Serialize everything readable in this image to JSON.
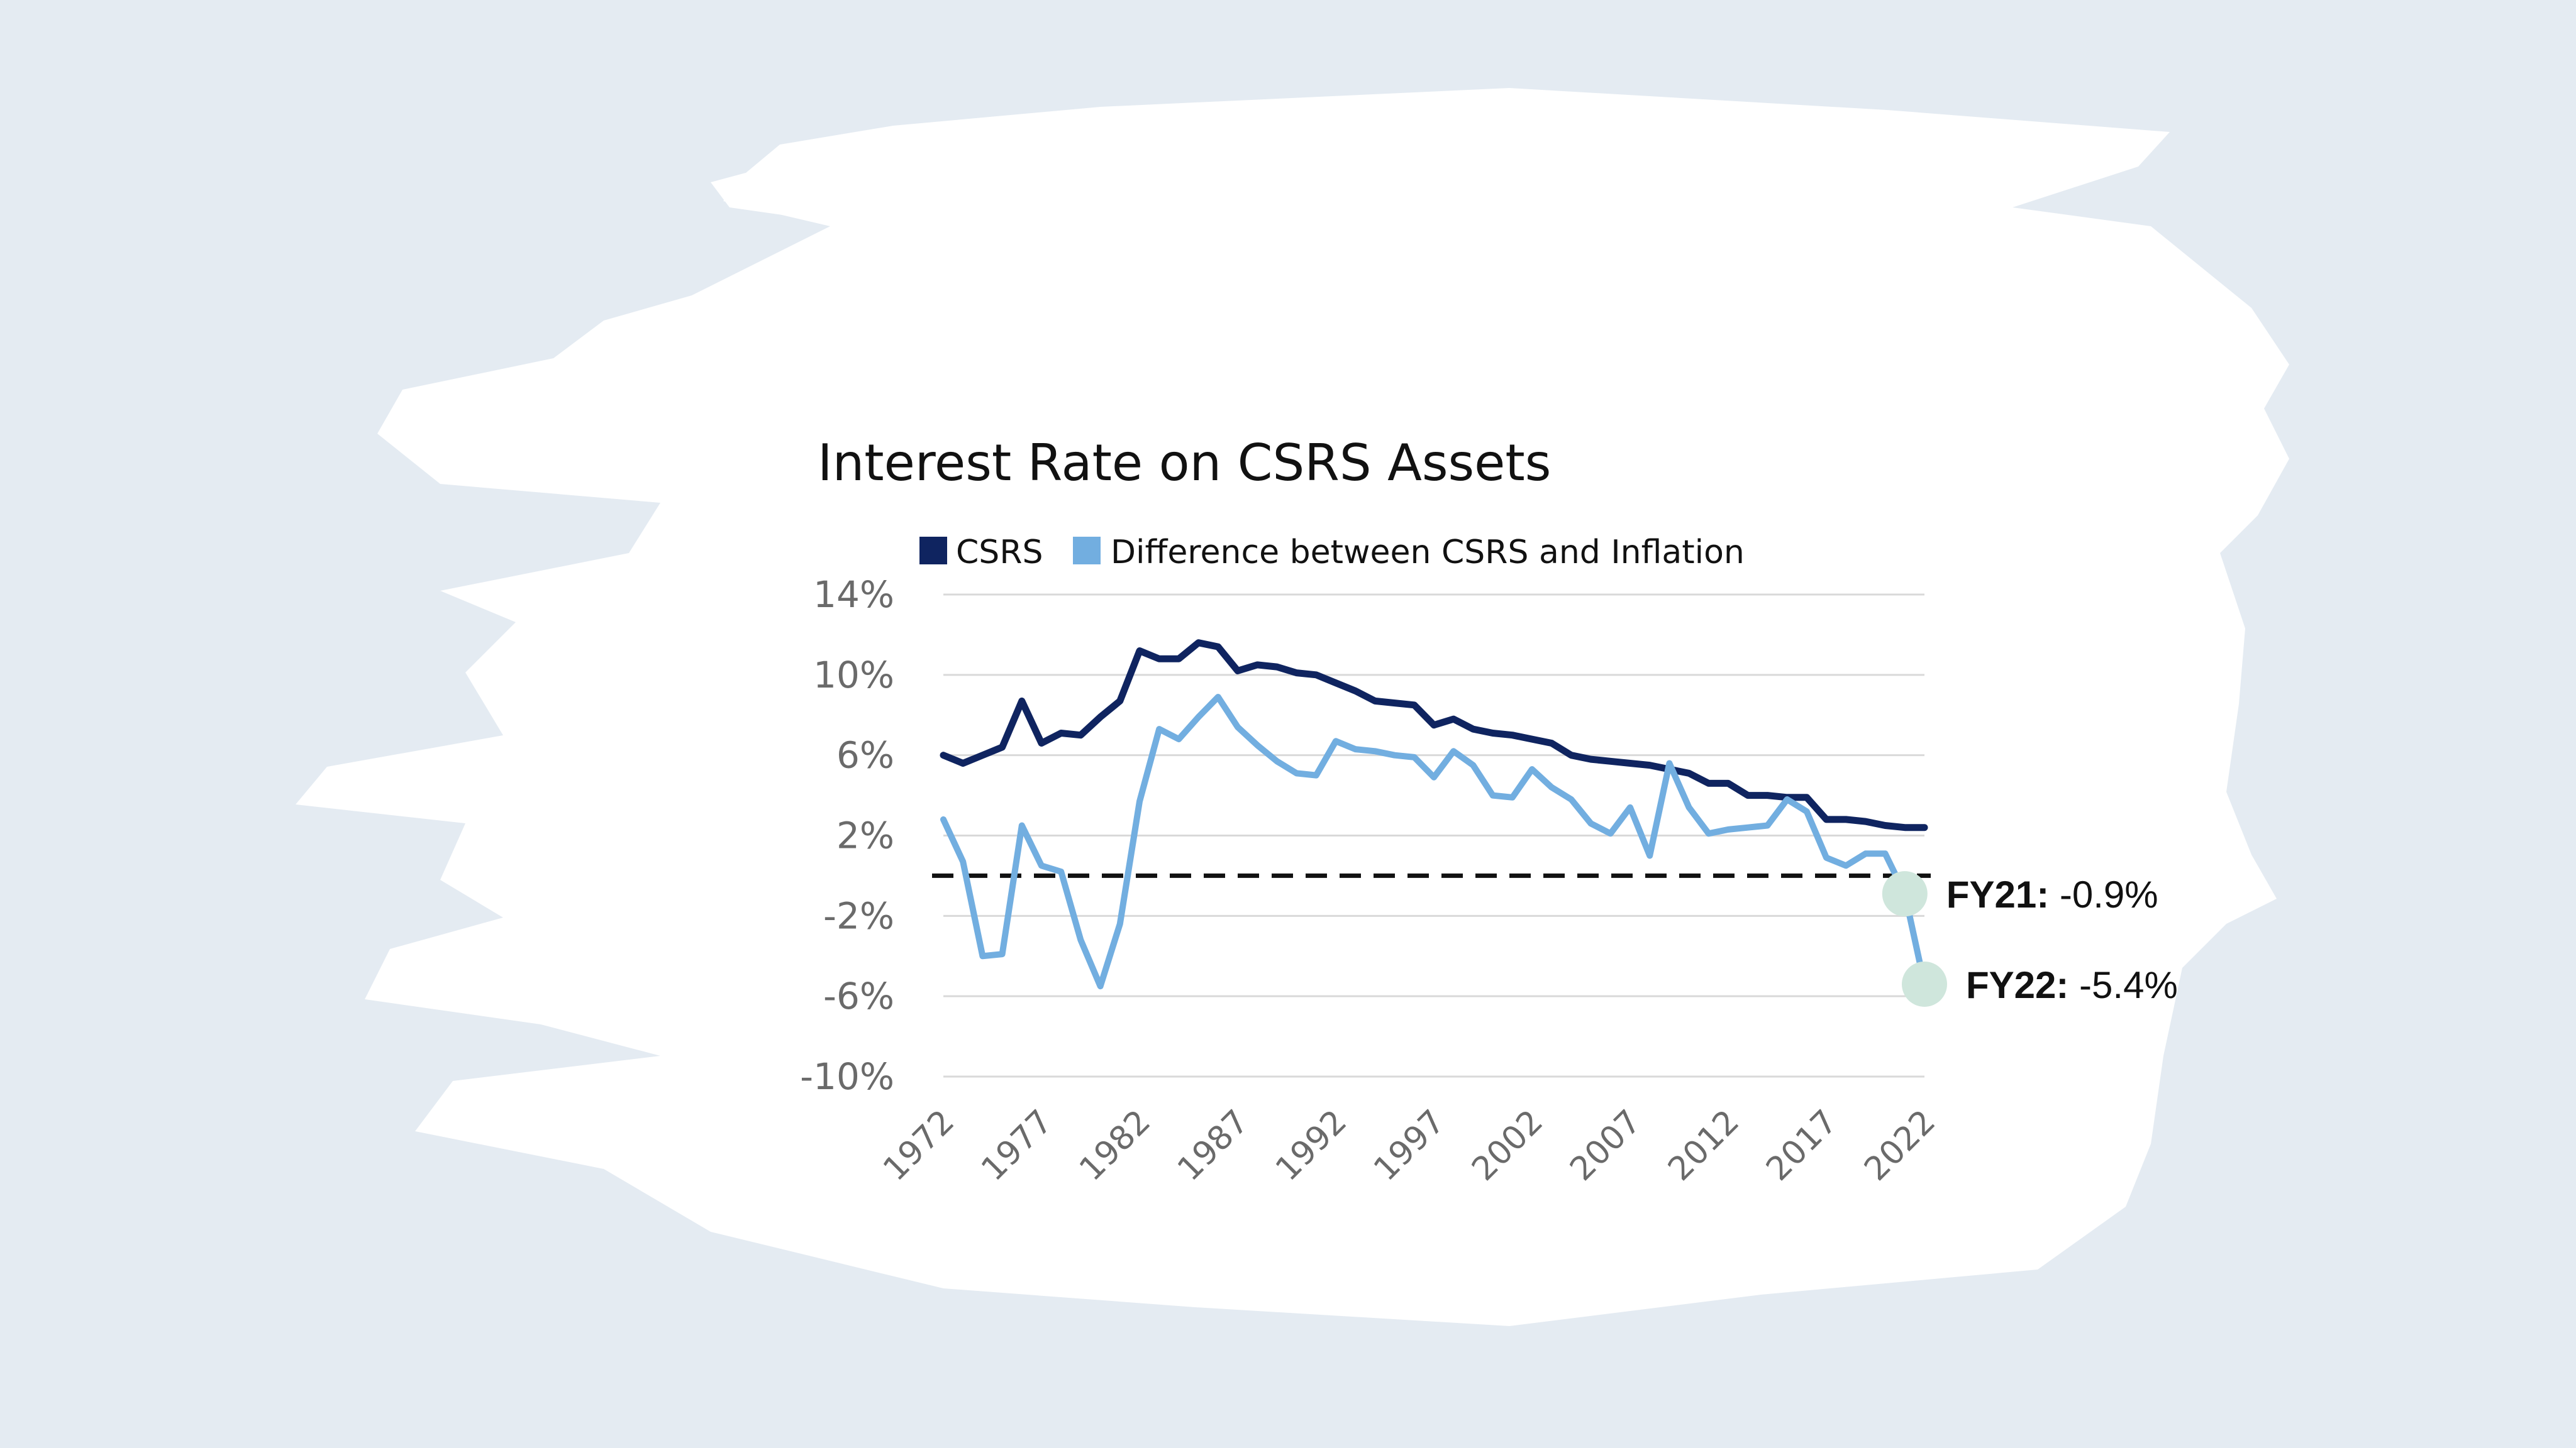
{
  "colors": {
    "background": "#e4ebf2",
    "brush_fill": "#ffffff",
    "csrs_series": "#0f2460",
    "difference_series": "#72aee0",
    "reference_line": "#111111",
    "gridline": "#d9d9d9",
    "marker": "#cfe6dc"
  },
  "chart_data": {
    "type": "line",
    "title": "Interest Rate on CSRS Assets",
    "xlabel": "",
    "ylabel": "",
    "ylim": [
      -10,
      14
    ],
    "xlim": [
      1972,
      2022
    ],
    "y_ticks": [
      14,
      10,
      6,
      2,
      -2,
      -6,
      -10
    ],
    "y_tick_labels": [
      "14%",
      "10%",
      "6%",
      "2%",
      "-2%",
      "-6%",
      "-10%"
    ],
    "x_ticks": [
      1972,
      1977,
      1982,
      1987,
      1992,
      1997,
      2002,
      2007,
      2012,
      2017,
      2022
    ],
    "x_tick_labels": [
      "1972",
      "1977",
      "1982",
      "1987",
      "1992",
      "1997",
      "2002",
      "2007",
      "2012",
      "2017",
      "2022"
    ],
    "grid": true,
    "legend_position": "top-left",
    "reference_line": {
      "y": 0,
      "style": "dashed"
    },
    "x": [
      1972,
      1973,
      1974,
      1975,
      1976,
      1977,
      1978,
      1979,
      1980,
      1981,
      1982,
      1983,
      1984,
      1985,
      1986,
      1987,
      1988,
      1989,
      1990,
      1991,
      1992,
      1993,
      1994,
      1995,
      1996,
      1997,
      1998,
      1999,
      2000,
      2001,
      2002,
      2003,
      2004,
      2005,
      2006,
      2007,
      2008,
      2009,
      2010,
      2011,
      2012,
      2013,
      2014,
      2015,
      2016,
      2017,
      2018,
      2019,
      2020,
      2021,
      2022
    ],
    "series": [
      {
        "name": "CSRS",
        "color": "#0f2460",
        "values": [
          6.0,
          5.6,
          6.0,
          6.4,
          8.7,
          6.6,
          7.1,
          7.0,
          7.9,
          8.7,
          11.2,
          10.8,
          10.8,
          11.6,
          11.4,
          10.2,
          10.5,
          10.4,
          10.1,
          10.0,
          9.6,
          9.2,
          8.7,
          8.6,
          8.5,
          7.5,
          7.8,
          7.3,
          7.1,
          7.0,
          6.8,
          6.6,
          6.0,
          5.8,
          5.7,
          5.6,
          5.5,
          5.3,
          5.1,
          4.6,
          4.6,
          4.0,
          4.0,
          3.9,
          3.9,
          2.8,
          2.8,
          2.7,
          2.5,
          2.4,
          2.4
        ]
      },
      {
        "name": "Difference between CSRS and Inflation",
        "color": "#72aee0",
        "values": [
          2.8,
          0.7,
          -4.0,
          -3.9,
          2.5,
          0.5,
          0.2,
          -3.2,
          -5.5,
          -2.4,
          3.7,
          7.3,
          6.8,
          7.9,
          8.9,
          7.4,
          6.5,
          5.7,
          5.1,
          5.0,
          6.7,
          6.3,
          6.2,
          6.0,
          5.9,
          4.9,
          6.2,
          5.5,
          4.0,
          3.9,
          5.3,
          4.4,
          3.8,
          2.6,
          2.1,
          3.4,
          1.0,
          5.6,
          3.4,
          2.1,
          2.3,
          2.4,
          2.5,
          3.8,
          3.2,
          0.9,
          0.5,
          1.1,
          1.1,
          -0.9,
          -5.4
        ]
      }
    ],
    "annotations": [
      {
        "x": 2021,
        "y": -0.9,
        "label": "FY21:",
        "value_text": "-0.9%"
      },
      {
        "x": 2022,
        "y": -5.4,
        "label": "FY22:",
        "value_text": "-5.4%"
      }
    ]
  }
}
